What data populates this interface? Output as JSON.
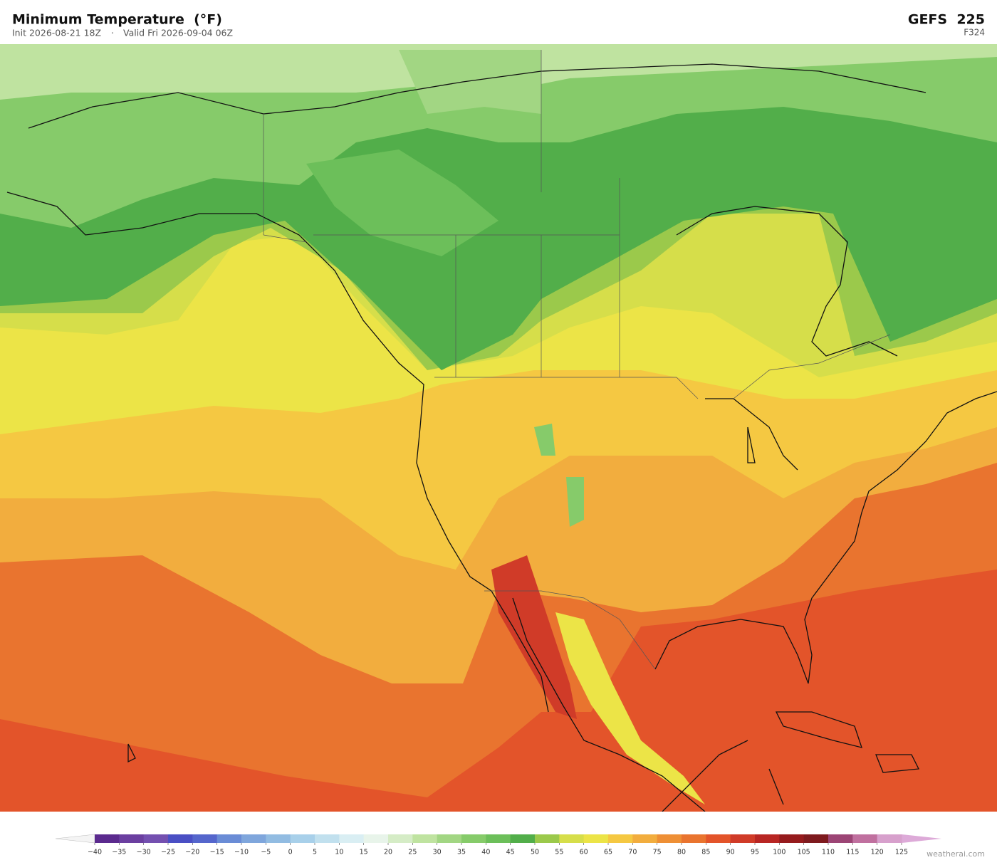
{
  "header": {
    "title": "Minimum Temperature  (°F)",
    "init": "Init 2026-08-21 18Z",
    "separator": "·",
    "valid": "Valid Fri 2026-09-04 06Z",
    "model": "GEFS  225",
    "forecast_hour": "F324"
  },
  "colorbar": {
    "ticks": [
      {
        "value": -40,
        "label": "−40"
      },
      {
        "value": -35,
        "label": "−35"
      },
      {
        "value": -30,
        "label": "−30"
      },
      {
        "value": -25,
        "label": "−25"
      },
      {
        "value": -20,
        "label": "−20"
      },
      {
        "value": -15,
        "label": "−15"
      },
      {
        "value": -10,
        "label": "−10"
      },
      {
        "value": -5,
        "label": "−5"
      },
      0,
      5,
      10,
      15,
      20,
      25,
      30,
      35,
      40,
      45,
      50,
      55,
      60,
      65,
      70,
      75,
      80,
      85,
      90,
      95,
      100,
      105,
      110,
      115,
      120,
      125
    ],
    "colors": [
      "#5b2a8e",
      "#6b3fa0",
      "#7450b0",
      "#4a4fc4",
      "#5566cc",
      "#6a8cd6",
      "#7fa6dc",
      "#92bce2",
      "#a8d0ea",
      "#c1e0ee",
      "#d9eef3",
      "#e8f4ea",
      "#d5ecc6",
      "#bfe3a0",
      "#a2d683",
      "#86cb6a",
      "#6cbf5a",
      "#52ae4a",
      "#9bc94b",
      "#d6de4a",
      "#ece447",
      "#f5c842",
      "#f2ad3e",
      "#ee8f35",
      "#e9742f",
      "#e3542a",
      "#d03b28",
      "#b82623",
      "#961b1d",
      "#7e1a1e",
      "#9c4575",
      "#c0709f",
      "#d7a0cc"
    ],
    "under_color": "#f4f4f4",
    "over_color": "#ddaad8"
  },
  "watermark": "weatherai.com"
}
